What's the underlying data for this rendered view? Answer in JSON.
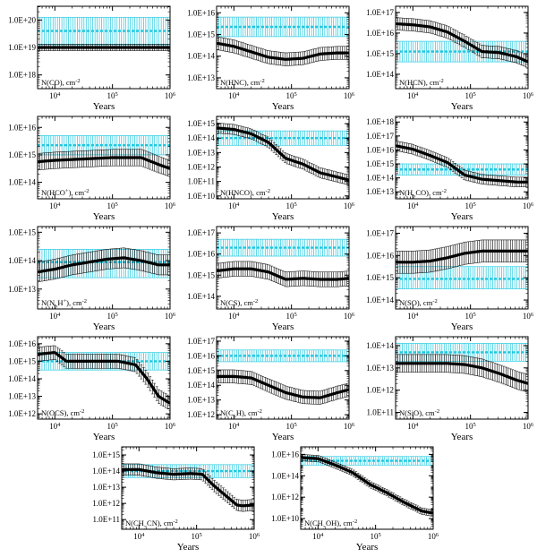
{
  "chart_data": [
    {
      "type": "line",
      "label": "N(CO), cm",
      "sup": "-2",
      "xlabel": "Years",
      "xticks": [
        "10",
        "10",
        "10"
      ],
      "xtick_sups": [
        "4",
        "5",
        "6"
      ],
      "xlim": [
        3.7,
        6.0
      ],
      "ylim": [
        17.5,
        20.5
      ],
      "yticks": [
        "1.0E+18",
        "1.0E+19",
        "1.0E+20"
      ],
      "ytick_values": [
        18,
        19,
        20
      ],
      "observed": {
        "center": 19.6,
        "lower": 19.1,
        "upper": 20.1
      },
      "series": [
        {
          "x": [
            3.7,
            4.0,
            4.5,
            5.0,
            5.5,
            6.0
          ],
          "y": [
            19.0,
            19.0,
            19.0,
            19.0,
            19.0,
            19.0
          ],
          "err": 0.12
        }
      ],
      "col": 0,
      "row": 0
    },
    {
      "type": "line",
      "label": "N(HNC), cm",
      "sup": "-2",
      "xlabel": "Years",
      "xticks": [
        "10",
        "10",
        "10"
      ],
      "xtick_sups": [
        "4",
        "5",
        "6"
      ],
      "xlim": [
        3.7,
        6.0
      ],
      "ylim": [
        12.5,
        16.3
      ],
      "yticks": [
        "1.0E+13",
        "1.0E+14",
        "1.0E+15",
        "1.0E+16"
      ],
      "ytick_values": [
        13,
        14,
        15,
        16
      ],
      "observed": {
        "center": 15.35,
        "lower": 14.9,
        "upper": 15.8
      },
      "series": [
        {
          "x": [
            3.7,
            4.0,
            4.3,
            4.6,
            4.9,
            5.2,
            5.5,
            5.8,
            6.0
          ],
          "y": [
            14.6,
            14.45,
            14.2,
            13.95,
            13.85,
            13.9,
            14.1,
            14.15,
            14.15
          ],
          "err": 0.3
        }
      ],
      "col": 1,
      "row": 0
    },
    {
      "type": "line",
      "label": "N(HCN), cm",
      "sup": "-2",
      "xlabel": "Years",
      "xticks": [
        "10",
        "10",
        "10"
      ],
      "xtick_sups": [
        "4",
        "5",
        "6"
      ],
      "xlim": [
        3.7,
        6.0
      ],
      "ylim": [
        13.3,
        17.3
      ],
      "yticks": [
        "1.0E+14",
        "1.0E+15",
        "1.0E+16",
        "1.0E+17"
      ],
      "ytick_values": [
        14,
        15,
        16,
        17
      ],
      "observed": {
        "center": 15.1,
        "lower": 14.6,
        "upper": 15.6
      },
      "series": [
        {
          "x": [
            3.7,
            4.0,
            4.3,
            4.6,
            4.9,
            5.2,
            5.5,
            5.8,
            6.0
          ],
          "y": [
            16.45,
            16.4,
            16.3,
            16.05,
            15.6,
            15.1,
            15.05,
            14.85,
            14.6
          ],
          "err": 0.3
        }
      ],
      "col": 2,
      "row": 0
    },
    {
      "type": "line",
      "label": "N(HCO",
      "label_sup": "+",
      "label_end": "), cm",
      "sup": "-2",
      "xlabel": "Years",
      "xticks": [
        "10",
        "10",
        "10"
      ],
      "xtick_sups": [
        "4",
        "5",
        "6"
      ],
      "xlim": [
        3.7,
        6.0
      ],
      "ylim": [
        13.4,
        16.4
      ],
      "yticks": [
        "1.0E+14",
        "1.0E+15",
        "1.0E+16"
      ],
      "ytick_values": [
        14,
        15,
        16
      ],
      "observed": {
        "center": 15.35,
        "lower": 15.0,
        "upper": 15.7
      },
      "series": [
        {
          "x": [
            3.7,
            4.0,
            4.5,
            5.0,
            5.5,
            5.8,
            6.0
          ],
          "y": [
            14.75,
            14.8,
            14.85,
            14.9,
            14.9,
            14.65,
            14.5
          ],
          "err": 0.3
        }
      ],
      "col": 0,
      "row": 1
    },
    {
      "type": "line",
      "label": "N(HNCO), cm",
      "sup": "-2",
      "xlabel": "Years",
      "xticks": [
        "10",
        "10",
        "10"
      ],
      "xtick_sups": [
        "4",
        "5",
        "6"
      ],
      "xlim": [
        3.7,
        6.0
      ],
      "ylim": [
        9.8,
        15.5
      ],
      "yticks": [
        "1.0E+10",
        "1.0E+11",
        "1.0E+12",
        "1.0E+13",
        "1.0E+14",
        "1.0E+15"
      ],
      "ytick_values": [
        10,
        11,
        12,
        13,
        14,
        15
      ],
      "observed": {
        "center": 14.0,
        "lower": 13.5,
        "upper": 14.5
      },
      "series": [
        {
          "x": [
            3.7,
            4.0,
            4.3,
            4.6,
            4.9,
            5.2,
            5.5,
            5.8,
            6.0
          ],
          "y": [
            14.7,
            14.6,
            14.3,
            13.7,
            12.6,
            12.2,
            11.6,
            11.3,
            11.1
          ],
          "err": 0.35
        }
      ],
      "col": 1,
      "row": 1
    },
    {
      "type": "line",
      "label": "N(H",
      "label_sub": "2",
      "label_end": "CO), cm",
      "sup": "-2",
      "xlabel": "Years",
      "xticks": [
        "10",
        "10",
        "10"
      ],
      "xtick_sups": [
        "4",
        "5",
        "6"
      ],
      "xlim": [
        3.7,
        6.0
      ],
      "ylim": [
        12.5,
        18.4
      ],
      "yticks": [
        "1.0E+13",
        "1.0E+14",
        "1.0E+15",
        "1.0E+16",
        "1.0E+17",
        "1.0E+18"
      ],
      "ytick_values": [
        13,
        14,
        15,
        16,
        17,
        18
      ],
      "observed": {
        "center": 14.6,
        "lower": 14.2,
        "upper": 15.0
      },
      "series": [
        {
          "x": [
            3.7,
            4.0,
            4.3,
            4.6,
            4.9,
            5.2,
            5.5,
            5.8,
            6.0
          ],
          "y": [
            16.3,
            16.05,
            15.6,
            15.1,
            14.2,
            13.9,
            13.8,
            13.7,
            13.7
          ],
          "err": 0.35
        }
      ],
      "col": 2,
      "row": 1
    },
    {
      "type": "line",
      "label": "N(N",
      "label_sub": "2",
      "label_end": "H",
      "label_sup": "+",
      "label_end2": "), cm",
      "sup": "-2",
      "xlabel": "Years",
      "xticks": [
        "10",
        "10",
        "10"
      ],
      "xtick_sups": [
        "4",
        "5",
        "6"
      ],
      "xlim": [
        3.7,
        6.0
      ],
      "ylim": [
        12.3,
        15.2
      ],
      "yticks": [
        "1.0E+13",
        "1.0E+14",
        "1.0E+15"
      ],
      "ytick_values": [
        13,
        14,
        15
      ],
      "observed": {
        "center": 13.95,
        "lower": 13.4,
        "upper": 14.4
      },
      "series": [
        {
          "x": [
            3.7,
            4.0,
            4.3,
            4.6,
            4.9,
            5.2,
            5.5,
            5.8,
            6.0
          ],
          "y": [
            13.6,
            13.7,
            13.85,
            13.95,
            14.05,
            14.1,
            14.0,
            13.85,
            13.85
          ],
          "err": 0.35
        }
      ],
      "col": 0,
      "row": 2
    },
    {
      "type": "line",
      "label": "N(CS), cm",
      "sup": "-2",
      "xlabel": "Years",
      "xticks": [
        "10",
        "10",
        "10"
      ],
      "xtick_sups": [
        "4",
        "5",
        "6"
      ],
      "xlim": [
        3.7,
        6.0
      ],
      "ylim": [
        13.4,
        17.3
      ],
      "yticks": [
        "1.0E+14",
        "1.0E+15",
        "1.0E+16",
        "1.0E+17"
      ],
      "ytick_values": [
        14,
        15,
        16,
        17
      ],
      "observed": {
        "center": 16.3,
        "lower": 15.9,
        "upper": 16.7
      },
      "series": [
        {
          "x": [
            3.7,
            4.0,
            4.3,
            4.6,
            4.9,
            5.2,
            5.5,
            5.8,
            6.0
          ],
          "y": [
            15.2,
            15.3,
            15.3,
            15.15,
            14.8,
            14.85,
            14.8,
            14.8,
            14.85
          ],
          "err": 0.35
        }
      ],
      "col": 1,
      "row": 2
    },
    {
      "type": "line",
      "label": "N(SO), cm",
      "sup": "-2",
      "xlabel": "Years",
      "xticks": [
        "10",
        "10",
        "10"
      ],
      "xtick_sups": [
        "4",
        "5",
        "6"
      ],
      "xlim": [
        3.7,
        6.0
      ],
      "ylim": [
        13.6,
        17.3
      ],
      "yticks": [
        "1.0E+14",
        "1.0E+15",
        "1.0E+16",
        "1.0E+17"
      ],
      "ytick_values": [
        14,
        15,
        16,
        17
      ],
      "observed": {
        "center": 14.95,
        "lower": 14.5,
        "upper": 15.5
      },
      "series": [
        {
          "x": [
            3.7,
            4.0,
            4.3,
            4.6,
            4.9,
            5.2,
            5.5,
            5.8,
            6.0
          ],
          "y": [
            15.7,
            15.7,
            15.75,
            15.9,
            16.1,
            16.2,
            16.2,
            16.2,
            16.2
          ],
          "err": 0.5
        }
      ],
      "col": 2,
      "row": 2
    },
    {
      "type": "line",
      "label": "N(OCS), cm",
      "sup": "-2",
      "xlabel": "Years",
      "xticks": [
        "10",
        "10",
        "10"
      ],
      "xtick_sups": [
        "4",
        "5",
        "6"
      ],
      "xlim": [
        3.7,
        6.0
      ],
      "ylim": [
        11.7,
        16.4
      ],
      "yticks": [
        "1.0E+12",
        "1.0E+13",
        "1.0E+14",
        "1.0E+15",
        "1.0E+16"
      ],
      "ytick_values": [
        12,
        13,
        14,
        15,
        16
      ],
      "observed": {
        "center": 15.0,
        "lower": 14.5,
        "upper": 15.5
      },
      "series": [
        {
          "x": [
            3.7,
            4.0,
            4.2,
            4.5,
            4.8,
            5.1,
            5.4,
            5.6,
            5.8,
            6.0
          ],
          "y": [
            15.4,
            15.5,
            15.0,
            15.0,
            15.0,
            15.0,
            14.8,
            14.0,
            13.0,
            12.6
          ],
          "err": 0.4
        }
      ],
      "col": 0,
      "row": 3
    },
    {
      "type": "line",
      "label": "N(C",
      "label_sub": "2",
      "label_end": "H), cm",
      "sup": "-2",
      "xlabel": "Years",
      "xticks": [
        "10",
        "10",
        "10"
      ],
      "xtick_sups": [
        "4",
        "5",
        "6"
      ],
      "xlim": [
        3.7,
        6.0
      ],
      "ylim": [
        11.7,
        17.3
      ],
      "yticks": [
        "1.0E+12",
        "1.0E+13",
        "1.0E+14",
        "1.0E+15",
        "1.0E+16",
        "1.0E+17"
      ],
      "ytick_values": [
        12,
        13,
        14,
        15,
        16,
        17
      ],
      "observed": {
        "center": 16.0,
        "lower": 15.6,
        "upper": 16.4
      },
      "series": [
        {
          "x": [
            3.7,
            4.0,
            4.3,
            4.6,
            4.9,
            5.2,
            5.5,
            5.8,
            6.0
          ],
          "y": [
            14.6,
            14.6,
            14.5,
            14.0,
            13.5,
            13.2,
            13.15,
            13.5,
            13.7
          ],
          "err": 0.45
        }
      ],
      "col": 1,
      "row": 3
    },
    {
      "type": "line",
      "label": "N(SiO), cm",
      "sup": "-2",
      "xlabel": "Years",
      "xticks": [
        "10",
        "10",
        "10"
      ],
      "xtick_sups": [
        "4",
        "5",
        "6"
      ],
      "xlim": [
        3.7,
        6.0
      ],
      "ylim": [
        10.7,
        14.4
      ],
      "yticks": [
        "1.0E+11",
        "1.0E+12",
        "1.0E+13",
        "1.0E+14"
      ],
      "ytick_values": [
        11,
        12,
        13,
        14
      ],
      "observed": {
        "center": 13.7,
        "lower": 13.3,
        "upper": 14.1
      },
      "series": [
        {
          "x": [
            3.7,
            4.0,
            4.3,
            4.6,
            4.9,
            5.2,
            5.5,
            5.8,
            6.0
          ],
          "y": [
            13.2,
            13.2,
            13.2,
            13.2,
            13.15,
            13.0,
            12.75,
            12.45,
            12.3
          ],
          "err": 0.4
        }
      ],
      "col": 2,
      "row": 3
    },
    {
      "type": "line",
      "label": "N(CH",
      "label_sub": "3",
      "label_end": "CN), cm",
      "sup": "-2",
      "xlabel": "Years",
      "xticks": [
        "10",
        "10",
        "10"
      ],
      "xtick_sups": [
        "4",
        "5",
        "6"
      ],
      "xlim": [
        3.7,
        6.0
      ],
      "ylim": [
        10.4,
        15.5
      ],
      "yticks": [
        "1.0E+11",
        "1.0E+12",
        "1.0E+13",
        "1.0E+14",
        "1.0E+15"
      ],
      "ytick_values": [
        11,
        12,
        13,
        14,
        15
      ],
      "observed": {
        "center": 14.0,
        "lower": 13.6,
        "upper": 14.4
      },
      "series": [
        {
          "x": [
            3.7,
            4.0,
            4.3,
            4.6,
            4.9,
            5.1,
            5.3,
            5.5,
            5.7,
            5.8,
            6.0
          ],
          "y": [
            14.1,
            14.1,
            13.9,
            13.8,
            13.85,
            13.8,
            13.1,
            12.5,
            11.9,
            11.85,
            11.9
          ],
          "err": 0.35
        }
      ],
      "col": 0,
      "row": 4,
      "offset": 1
    },
    {
      "type": "line",
      "label": "N(CH",
      "label_sub": "3",
      "label_end": "OH), cm",
      "sup": "-2",
      "xlabel": "Years",
      "xticks": [
        "10",
        "10",
        "10"
      ],
      "xtick_sups": [
        "4",
        "5",
        "6"
      ],
      "xlim": [
        3.7,
        6.0
      ],
      "ylim": [
        9.0,
        16.7
      ],
      "yticks": [
        "1.0E+10",
        "1.0E+12",
        "1.0E+14",
        "1.0E+16"
      ],
      "ytick_values": [
        10,
        12,
        14,
        16
      ],
      "observed": {
        "center": 15.4,
        "lower": 15.0,
        "upper": 15.8
      },
      "series": [
        {
          "x": [
            3.7,
            4.0,
            4.3,
            4.6,
            4.9,
            5.2,
            5.5,
            5.8,
            6.0
          ],
          "y": [
            15.7,
            15.6,
            15.0,
            14.3,
            13.2,
            12.4,
            11.5,
            10.7,
            10.5
          ],
          "err": 0.3
        }
      ],
      "col": 1,
      "row": 4,
      "offset": 1
    }
  ],
  "colors": {
    "model": "#000000",
    "observed": "#1ec8e0",
    "axis": "#000000"
  }
}
